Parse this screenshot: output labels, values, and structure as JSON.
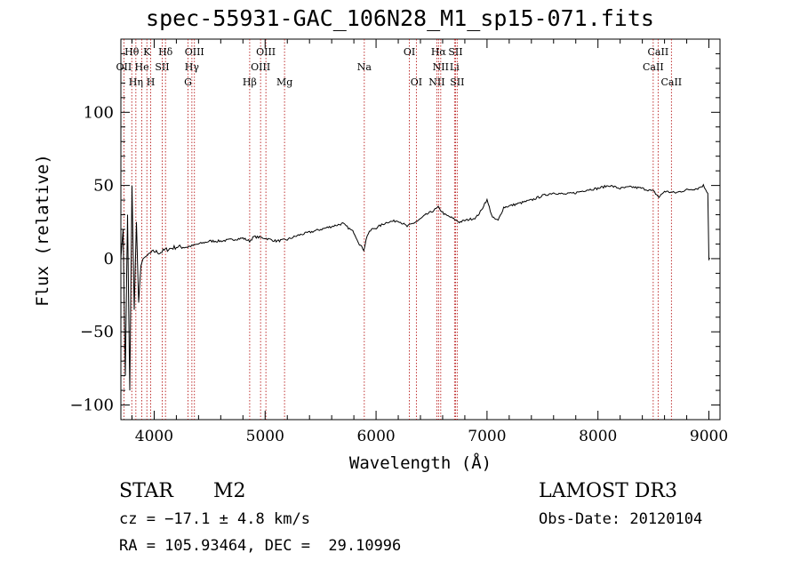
{
  "chart_data": {
    "type": "line",
    "title": "spec-55931-GAC_106N28_M1_sp15-071.fits",
    "xlabel": "Wavelength (Å)",
    "ylabel": "Flux (relative)",
    "xlim": [
      3700,
      9100
    ],
    "ylim": [
      -110,
      150
    ],
    "xticks": [
      4000,
      5000,
      6000,
      7000,
      8000,
      9000
    ],
    "xtick_labels": [
      "4000",
      "5000",
      "6000",
      "7000",
      "8000",
      "9000"
    ],
    "yticks": [
      -100,
      -50,
      0,
      50,
      100
    ],
    "ytick_labels": [
      "−100",
      "−50",
      "0",
      "50",
      "100"
    ],
    "series": [
      {
        "name": "spectrum",
        "x": [
          3700,
          3720,
          3740,
          3760,
          3780,
          3800,
          3820,
          3840,
          3860,
          3880,
          3900,
          3950,
          4000,
          4050,
          4100,
          4200,
          4300,
          4400,
          4500,
          4600,
          4700,
          4800,
          4860,
          4900,
          5000,
          5100,
          5200,
          5300,
          5400,
          5500,
          5600,
          5700,
          5800,
          5850,
          5890,
          5920,
          5960,
          6000,
          6100,
          6200,
          6280,
          6330,
          6380,
          6450,
          6500,
          6560,
          6620,
          6680,
          6750,
          6800,
          6900,
          6950,
          6980,
          7000,
          7050,
          7100,
          7150,
          7200,
          7300,
          7400,
          7500,
          7600,
          7700,
          7800,
          7900,
          8000,
          8100,
          8200,
          8300,
          8400,
          8500,
          8550,
          8600,
          8700,
          8800,
          8900,
          8950,
          8990,
          9000,
          9010
        ],
        "y": [
          0,
          20,
          -80,
          30,
          -90,
          50,
          -35,
          25,
          -30,
          -5,
          0,
          3,
          5,
          4,
          6,
          8,
          8,
          10,
          12,
          12,
          13,
          14,
          12,
          15,
          14,
          12,
          13,
          16,
          18,
          20,
          22,
          24,
          18,
          10,
          6,
          16,
          20,
          21,
          25,
          26,
          22,
          24,
          26,
          30,
          32,
          35,
          30,
          28,
          25,
          26,
          28,
          33,
          38,
          40,
          28,
          26,
          35,
          36,
          38,
          40,
          43,
          45,
          44,
          45,
          47,
          48,
          50,
          48,
          49,
          48,
          46,
          42,
          46,
          45,
          47,
          48,
          50,
          45,
          0,
          0
        ]
      }
    ],
    "lines": [
      {
        "name": "OII",
        "wave": 3727,
        "row": 2
      },
      {
        "name": "Hθ",
        "wave": 3798,
        "row": 1
      },
      {
        "name": "Hη",
        "wave": 3835,
        "row": 3
      },
      {
        "name": "He",
        "wave": 3889,
        "row": 2
      },
      {
        "name": "K",
        "wave": 3934,
        "row": 1
      },
      {
        "name": "H",
        "wave": 3969,
        "row": 3
      },
      {
        "name": "SII",
        "wave": 4072,
        "row": 2
      },
      {
        "name": "Hδ",
        "wave": 4102,
        "row": 1
      },
      {
        "name": "G",
        "wave": 4305,
        "row": 3
      },
      {
        "name": "Hγ",
        "wave": 4340,
        "row": 2
      },
      {
        "name": "OIII",
        "wave": 4363,
        "row": 1
      },
      {
        "name": "Hβ",
        "wave": 4861,
        "row": 3
      },
      {
        "name": "OIII",
        "wave": 4959,
        "row": 2
      },
      {
        "name": "OIII",
        "wave": 5007,
        "row": 1
      },
      {
        "name": "Mg",
        "wave": 5175,
        "row": 3
      },
      {
        "name": "Na",
        "wave": 5894,
        "row": 2
      },
      {
        "name": "OI",
        "wave": 6300,
        "row": 1
      },
      {
        "name": "OI",
        "wave": 6363,
        "row": 3
      },
      {
        "name": "NII",
        "wave": 6548,
        "row": 3
      },
      {
        "name": "Hα",
        "wave": 6563,
        "row": 1
      },
      {
        "name": "NII",
        "wave": 6583,
        "row": 2
      },
      {
        "name": "Li",
        "wave": 6707,
        "row": 2
      },
      {
        "name": "SII",
        "wave": 6716,
        "row": 1
      },
      {
        "name": "SII",
        "wave": 6731,
        "row": 3
      },
      {
        "name": "CaII",
        "wave": 8498,
        "row": 2
      },
      {
        "name": "CaII",
        "wave": 8542,
        "row": 1
      },
      {
        "name": "CaII",
        "wave": 8662,
        "row": 3
      }
    ]
  },
  "info": {
    "class": "STAR",
    "subclass": "M2",
    "survey": "LAMOST DR3",
    "cz": "cz = −17.1 ± 4.8 km/s",
    "obs_date": "Obs-Date: 20120104",
    "radec": "RA = 105.93464, DEC =  29.10996"
  }
}
